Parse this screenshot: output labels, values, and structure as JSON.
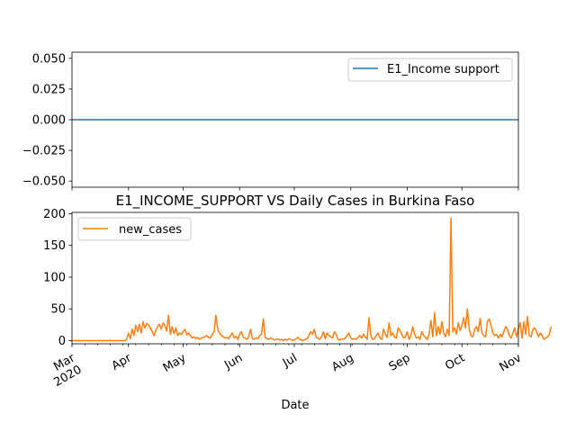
{
  "chart_data": [
    {
      "type": "line",
      "title": "",
      "xlabel": "",
      "ylabel": "",
      "ylim": [
        -0.055,
        0.055
      ],
      "yticks": [
        -0.05,
        -0.025,
        0.0,
        0.025,
        0.05
      ],
      "ytick_labels": [
        "−0.050",
        "−0.025",
        "0.000",
        "0.025",
        "0.050"
      ],
      "grid": false,
      "legend_position": "upper right",
      "series": [
        {
          "name": "E1_Income support",
          "color": "#1f77b4",
          "x": [
            "2020-03-01",
            "2020-11-01"
          ],
          "values": [
            0,
            0
          ]
        }
      ]
    },
    {
      "type": "line",
      "title": "E1_INCOME_SUPPORT VS Daily Cases in Burkina Faso",
      "xlabel": "Date",
      "ylabel": "",
      "xlim": [
        "2020-03-01",
        "2020-11-01"
      ],
      "ylim": [
        -5,
        202
      ],
      "yticks": [
        0,
        50,
        100,
        150,
        200
      ],
      "ytick_labels": [
        "0",
        "50",
        "100",
        "150",
        "200"
      ],
      "xticks": [
        "2020-03-01",
        "2020-04-01",
        "2020-05-01",
        "2020-06-01",
        "2020-07-01",
        "2020-08-01",
        "2020-09-01",
        "2020-10-01",
        "2020-11-01"
      ],
      "xtick_labels": [
        "Mar\n2020",
        "Apr",
        "May",
        "Jun",
        "Jul",
        "Aug",
        "Sep",
        "Oct",
        "Nov"
      ],
      "grid": false,
      "legend_position": "upper left",
      "series": [
        {
          "name": "new_cases",
          "color": "#ff7f0e",
          "start_date": "2020-03-01",
          "values": [
            0,
            0,
            0,
            0,
            0,
            0,
            0,
            0,
            0,
            0,
            0,
            0,
            0,
            0,
            0,
            0,
            0,
            0,
            0,
            0,
            0,
            0,
            0,
            0,
            0,
            0,
            0,
            0,
            0,
            0,
            2,
            12,
            3,
            18,
            8,
            24,
            14,
            26,
            12,
            30,
            20,
            27,
            25,
            20,
            14,
            8,
            16,
            22,
            26,
            18,
            28,
            24,
            15,
            40,
            10,
            22,
            11,
            20,
            8,
            12,
            10,
            14,
            18,
            9,
            12,
            8,
            4,
            6,
            3,
            5,
            2,
            4,
            5,
            6,
            8,
            5,
            4,
            10,
            14,
            40,
            18,
            12,
            8,
            6,
            4,
            5,
            3,
            8,
            12,
            4,
            7,
            2,
            10,
            14,
            5,
            4,
            2,
            6,
            18,
            3,
            2,
            4,
            3,
            8,
            10,
            34,
            5,
            3,
            2,
            4,
            3,
            1,
            2,
            3,
            1,
            2,
            0,
            2,
            1,
            3,
            2,
            0,
            1,
            3,
            5,
            2,
            1,
            0,
            2,
            3,
            8,
            14,
            10,
            18,
            5,
            4,
            2,
            6,
            14,
            3,
            12,
            8,
            6,
            4,
            14,
            10,
            2,
            1,
            3,
            2,
            4,
            8,
            12,
            4,
            2,
            3,
            2,
            5,
            8,
            4,
            10,
            6,
            2,
            36,
            8,
            2,
            3,
            8,
            12,
            4,
            2,
            18,
            10,
            5,
            28,
            8,
            12,
            6,
            4,
            20,
            16,
            10,
            4,
            6,
            14,
            2,
            8,
            22,
            10,
            4,
            6,
            2,
            14,
            8,
            5,
            2,
            10,
            32,
            6,
            44,
            8,
            22,
            10,
            30,
            12,
            6,
            18,
            8,
            193,
            14,
            20,
            10,
            28,
            16,
            24,
            36,
            20,
            50,
            18,
            8,
            6,
            18,
            22,
            14,
            35,
            12,
            8,
            6,
            30,
            34,
            24,
            12,
            8,
            10,
            4,
            10,
            6,
            14,
            22,
            18,
            8,
            4,
            12,
            20,
            6,
            18,
            28,
            4,
            30,
            10,
            38,
            8,
            6,
            18,
            20,
            14,
            6,
            12,
            8,
            2,
            4,
            6,
            10,
            22
          ]
        }
      ]
    }
  ]
}
